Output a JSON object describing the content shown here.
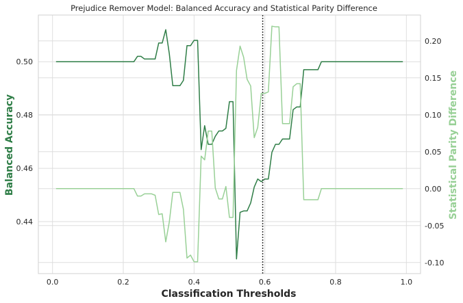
{
  "chart_data": {
    "type": "line",
    "title": "Prejudice Remover Model: Balanced Accuracy and Statistical Parity Difference",
    "xlabel": "Classification Thresholds",
    "ylabel_left": "Balanced Accuracy",
    "ylabel_right": "Statistical Parity Difference",
    "xlim": [
      -0.04,
      1.04
    ],
    "ylim_left": [
      0.4205,
      0.5175
    ],
    "ylim_right": [
      -0.115,
      0.235
    ],
    "xticks": [
      "0.0",
      "0.2",
      "0.4",
      "0.6",
      "0.8",
      "1.0"
    ],
    "yticks_left": [
      "0.44",
      "0.46",
      "0.48",
      "0.50"
    ],
    "yticks_right": [
      "-0.10",
      "-0.05",
      "0.00",
      "0.05",
      "0.10",
      "0.15",
      "0.20"
    ],
    "grid": true,
    "vline_x": 0.594,
    "colors": {
      "left_series": "#2e7d46",
      "right_series": "#98d096",
      "vline": "#333333"
    },
    "series": [
      {
        "axis": "left",
        "x": [
          0.01,
          0.2,
          0.23,
          0.24,
          0.25,
          0.26,
          0.27,
          0.28,
          0.29,
          0.3,
          0.31,
          0.32,
          0.33,
          0.34,
          0.35,
          0.36,
          0.37,
          0.38,
          0.39,
          0.4,
          0.41,
          0.42,
          0.43,
          0.44,
          0.45,
          0.46,
          0.47,
          0.48,
          0.49,
          0.5,
          0.51,
          0.52,
          0.53,
          0.54,
          0.55,
          0.56,
          0.57,
          0.58,
          0.59,
          0.6,
          0.61,
          0.62,
          0.63,
          0.64,
          0.65,
          0.66,
          0.67,
          0.68,
          0.69,
          0.7,
          0.71,
          0.72,
          0.73,
          0.74,
          0.75,
          0.76,
          0.99
        ],
        "y": [
          0.5,
          0.5,
          0.5,
          0.502,
          0.502,
          0.501,
          0.501,
          0.501,
          0.501,
          0.507,
          0.507,
          0.512,
          0.503,
          0.491,
          0.491,
          0.491,
          0.493,
          0.506,
          0.506,
          0.508,
          0.508,
          0.467,
          0.476,
          0.469,
          0.469,
          0.472,
          0.474,
          0.474,
          0.475,
          0.485,
          0.485,
          0.426,
          0.4435,
          0.444,
          0.444,
          0.447,
          0.453,
          0.456,
          0.455,
          0.456,
          0.456,
          0.466,
          0.469,
          0.469,
          0.471,
          0.471,
          0.471,
          0.482,
          0.483,
          0.483,
          0.497,
          0.497,
          0.497,
          0.497,
          0.497,
          0.5,
          0.5
        ]
      },
      {
        "axis": "right",
        "x": [
          0.01,
          0.2,
          0.23,
          0.24,
          0.25,
          0.26,
          0.27,
          0.28,
          0.29,
          0.3,
          0.31,
          0.32,
          0.33,
          0.34,
          0.35,
          0.36,
          0.37,
          0.38,
          0.39,
          0.4,
          0.41,
          0.42,
          0.43,
          0.44,
          0.45,
          0.46,
          0.47,
          0.48,
          0.49,
          0.5,
          0.51,
          0.52,
          0.53,
          0.54,
          0.55,
          0.56,
          0.57,
          0.58,
          0.59,
          0.6,
          0.61,
          0.62,
          0.63,
          0.64,
          0.65,
          0.66,
          0.67,
          0.68,
          0.69,
          0.7,
          0.71,
          0.72,
          0.73,
          0.74,
          0.75,
          0.76,
          0.99
        ],
        "y": [
          0.0,
          0.0,
          0.0,
          -0.01,
          -0.01,
          -0.007,
          -0.007,
          -0.007,
          -0.009,
          -0.035,
          -0.034,
          -0.072,
          -0.045,
          -0.005,
          -0.005,
          -0.005,
          -0.028,
          -0.094,
          -0.09,
          -0.099,
          -0.099,
          0.044,
          0.039,
          0.078,
          0.078,
          0.001,
          -0.014,
          -0.014,
          0.003,
          -0.039,
          -0.039,
          0.16,
          0.193,
          0.178,
          0.148,
          0.139,
          0.069,
          0.083,
          0.129,
          0.129,
          0.131,
          0.22,
          0.219,
          0.219,
          0.088,
          0.088,
          0.088,
          0.138,
          0.142,
          0.142,
          -0.015,
          -0.015,
          -0.015,
          -0.015,
          -0.015,
          0.0,
          0.0
        ]
      }
    ]
  }
}
